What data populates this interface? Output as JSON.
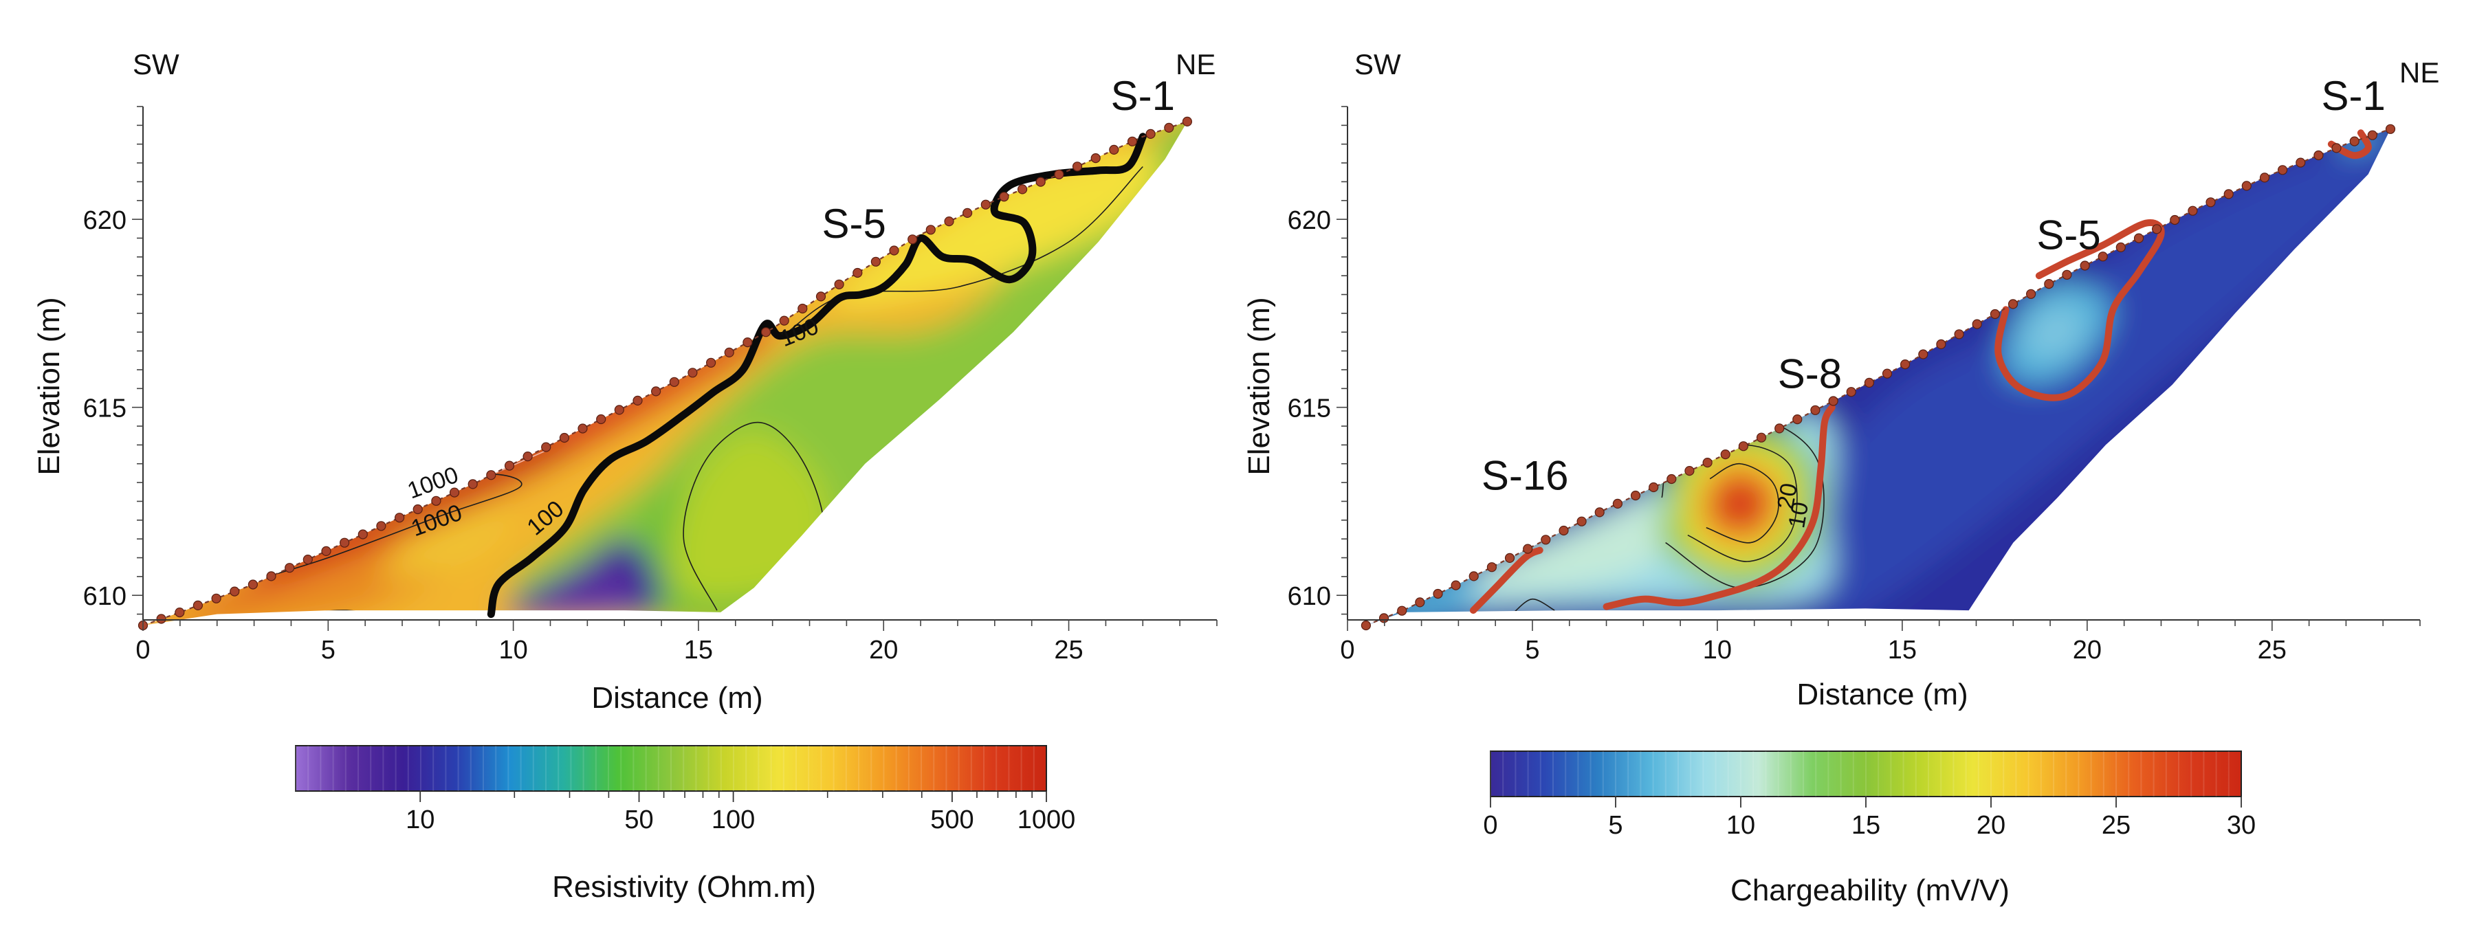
{
  "chart_data": [
    {
      "type": "heatmap",
      "panel": "left",
      "quantity": "Resistivity",
      "xlabel": "Distance (m)",
      "ylabel": "Elevation (m)",
      "xlim": [
        0,
        29
      ],
      "ylim": [
        609.2,
        623.0
      ],
      "xticks": [
        0,
        5,
        10,
        15,
        20,
        25
      ],
      "xtick_labels": [
        "0",
        "5",
        "10",
        "15",
        "20",
        "25"
      ],
      "yticks": [
        610,
        615,
        620
      ],
      "ytick_labels": [
        "610",
        "615",
        "620"
      ],
      "direction_left": "SW",
      "direction_right": "NE",
      "stations": [
        {
          "label": "S-1",
          "x": 27.0,
          "y": 622.4
        },
        {
          "label": "S-5",
          "x": 19.2,
          "y": 619.0
        }
      ],
      "contour_labels": [
        {
          "text": "1000",
          "x": 7.9,
          "y": 612.8,
          "angle": -20
        },
        {
          "text": "1000",
          "x": 8.0,
          "y": 611.8,
          "angle": -20
        },
        {
          "text": "100",
          "x": 11.0,
          "y": 611.9,
          "angle": -40
        },
        {
          "text": "100",
          "x": 17.8,
          "y": 616.8,
          "angle": -22
        }
      ],
      "colorbar": {
        "label": "Resistivity (Ohm.m)",
        "scale": "log",
        "range": [
          4,
          1000
        ],
        "tick_values": [
          10,
          50,
          100,
          500,
          1000
        ],
        "tick_labels": [
          "10",
          "50",
          "100",
          "500",
          "1000"
        ],
        "minor_ticks": [
          20,
          30,
          40,
          60,
          70,
          80,
          90,
          200,
          300,
          400,
          600,
          700,
          800,
          900
        ],
        "colors": [
          "#9a6fd6",
          "#5a2ea0",
          "#3b1f96",
          "#2a3fb0",
          "#1f8fd0",
          "#27b0a0",
          "#4ec23a",
          "#8cc63c",
          "#c8d42a",
          "#f1e23a",
          "#f7c830",
          "#f39a23",
          "#ea6a1f",
          "#d93a1a",
          "#c92712"
        ]
      }
    },
    {
      "type": "heatmap",
      "panel": "right",
      "quantity": "Chargeability",
      "xlabel": "Distance (m)",
      "ylabel": "Elevation (m)",
      "xlim": [
        0,
        29
      ],
      "ylim": [
        609.2,
        623.0
      ],
      "xticks": [
        0,
        5,
        10,
        15,
        20,
        25
      ],
      "xtick_labels": [
        "0",
        "5",
        "10",
        "15",
        "20",
        "25"
      ],
      "yticks": [
        610,
        615,
        620
      ],
      "ytick_labels": [
        "610",
        "615",
        "620"
      ],
      "direction_left": "SW",
      "direction_right": "NE",
      "stations": [
        {
          "label": "S-1",
          "x": 27.2,
          "y": 622.4
        },
        {
          "label": "S-5",
          "x": 19.5,
          "y": 618.7
        },
        {
          "label": "S-8",
          "x": 12.5,
          "y": 615.0
        },
        {
          "label": "S-16",
          "x": 4.8,
          "y": 612.3
        }
      ],
      "contour_labels": [
        {
          "text": "20",
          "x": 12.1,
          "y": 612.6,
          "angle": -80
        },
        {
          "text": "10",
          "x": 12.4,
          "y": 612.1,
          "angle": -80
        }
      ],
      "colorbar": {
        "label": "Chargeability (mV/V)",
        "scale": "linear",
        "range": [
          0,
          30
        ],
        "tick_values": [
          0,
          5,
          10,
          15,
          20,
          25,
          30
        ],
        "tick_labels": [
          "0",
          "5",
          "10",
          "15",
          "20",
          "25",
          "30"
        ],
        "colors": [
          "#3a2a98",
          "#2c47b4",
          "#2c7ec4",
          "#57b6dc",
          "#9fdde8",
          "#c4ead8",
          "#7fcf63",
          "#8ac53a",
          "#bcd52c",
          "#ece43a",
          "#f6c82f",
          "#f29a24",
          "#e8601e",
          "#d83b1b",
          "#cc2814"
        ]
      }
    }
  ]
}
